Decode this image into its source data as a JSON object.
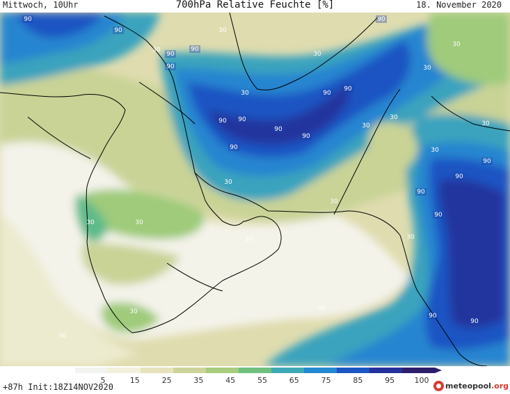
{
  "header": {
    "left": "Mittwoch, 10Uhr",
    "title": "700hPa Relative Feuchte [%]",
    "right": "18. November 2020"
  },
  "footer": {
    "run_info": "+87h  Init:18Z14NOV2020",
    "logo_main": "meteopool",
    "logo_suffix": ".org"
  },
  "colorbar": {
    "ticks": [
      "5",
      "15",
      "25",
      "35",
      "45",
      "55",
      "65",
      "75",
      "85",
      "95",
      "100"
    ],
    "colors": [
      "#f2f2ef",
      "#f2efdc",
      "#e6e2bc",
      "#cdd49a",
      "#a7cc7d",
      "#6fc07e",
      "#3ea7b6",
      "#2288cf",
      "#1a55c2",
      "#24309c",
      "#2c1e6a"
    ]
  },
  "contour_labels": [
    "90",
    "90",
    "90",
    "90",
    "90",
    "90",
    "90",
    "90",
    "90",
    "90",
    "90",
    "90",
    "90",
    "90",
    "90",
    "90",
    "90",
    "90",
    "90",
    "30",
    "30",
    "30",
    "30",
    "30",
    "30",
    "30",
    "30",
    "30",
    "30",
    "30",
    "30",
    "30",
    "30",
    "30",
    "30",
    "30",
    "30",
    "30"
  ],
  "map_colors": {
    "dry": "#f4f3ea",
    "pale": "#ecebcf",
    "tan": "#dfdcaf",
    "khaki": "#c9d396",
    "green": "#9fcb7a",
    "teal": "#5fbb8a",
    "cyan": "#3aa3bd",
    "blue": "#2585d0",
    "deep": "#1b55c3",
    "navy": "#24349f",
    "violet": "#2c2068"
  }
}
